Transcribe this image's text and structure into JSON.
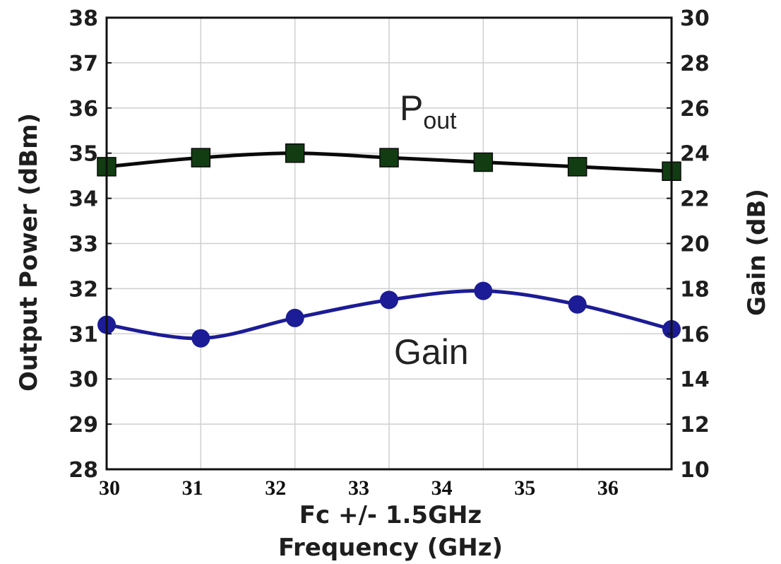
{
  "chart_data": {
    "type": "line",
    "x": [
      30,
      31,
      32,
      33,
      34,
      35,
      36
    ],
    "xtick_labels": [
      "30",
      "31",
      "32",
      "33",
      "34",
      "35",
      "36"
    ],
    "xlabel_line1": "Fc +/- 1.5GHz",
    "xlabel_line2": "Frequency (GHz)",
    "ylabel_left": "Output Power (dBm)",
    "ylabel_right": "Gain (dB)",
    "ylim_left": [
      28,
      38
    ],
    "ylim_right": [
      10,
      30
    ],
    "yticks_left": [
      "28",
      "29",
      "30",
      "31",
      "32",
      "33",
      "34",
      "35",
      "36",
      "37",
      "38"
    ],
    "yticks_right": [
      "10",
      "12",
      "14",
      "16",
      "18",
      "20",
      "22",
      "24",
      "26",
      "28",
      "30"
    ],
    "grid": true,
    "series": [
      {
        "label_main": "P",
        "label_sub": "out",
        "axis": "left",
        "marker": "square",
        "color": "#0a0a0a",
        "marker_color": "#123d12",
        "values": [
          34.7,
          34.9,
          35.0,
          34.9,
          34.8,
          34.7,
          34.6
        ]
      },
      {
        "label_main": "Gain",
        "axis": "right",
        "marker": "circle",
        "color": "#1c1c96",
        "marker_color": "#1c1c96",
        "values": [
          16.4,
          15.8,
          16.7,
          17.5,
          17.9,
          17.3,
          16.2
        ]
      }
    ]
  }
}
